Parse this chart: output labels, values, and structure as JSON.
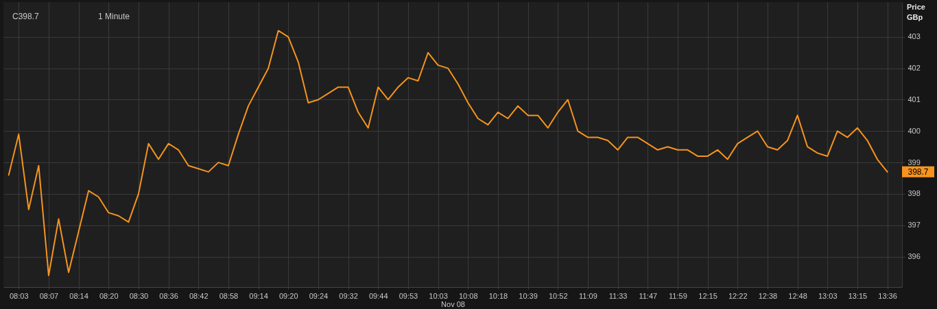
{
  "chart_data": {
    "type": "line",
    "xlabel": "Nov 08",
    "ylabel": "Price GBp",
    "annotations": [
      "C398.7",
      "1 Minute",
      "398.7"
    ],
    "categories": [
      null,
      "08:03",
      null,
      null,
      "08:07",
      null,
      null,
      "08:14",
      null,
      null,
      "08:20",
      null,
      null,
      "08:30",
      null,
      null,
      "08:36",
      null,
      null,
      "08:42",
      null,
      null,
      "08:58",
      null,
      null,
      "09:14",
      null,
      null,
      "09:20",
      null,
      null,
      "09:24",
      null,
      null,
      "09:32",
      null,
      null,
      "09:44",
      null,
      null,
      "09:53",
      null,
      null,
      "10:03",
      null,
      null,
      "10:08",
      null,
      null,
      "10:18",
      null,
      null,
      "10:39",
      null,
      null,
      "10:52",
      null,
      null,
      "11:09",
      null,
      null,
      "11:33",
      null,
      null,
      "11:47",
      null,
      null,
      "11:59",
      null,
      null,
      "12:15",
      null,
      null,
      "12:22",
      null,
      null,
      "12:38",
      null,
      null,
      "12:48",
      null,
      null,
      "13:03",
      null,
      null,
      "13:15",
      null,
      null,
      "13:36"
    ],
    "series": [
      {
        "color": "#f7941e",
        "values": [
          398.6,
          399.9,
          397.5,
          398.9,
          395.4,
          397.2,
          395.5,
          396.8,
          398.1,
          397.9,
          397.4,
          397.3,
          397.1,
          398.0,
          399.6,
          399.1,
          399.6,
          399.4,
          398.9,
          398.8,
          398.7,
          399.0,
          398.9,
          399.9,
          400.8,
          401.4,
          402.0,
          403.2,
          403.0,
          402.2,
          400.9,
          401.0,
          401.2,
          401.4,
          401.4,
          400.6,
          400.1,
          401.4,
          401.0,
          401.4,
          401.7,
          401.6,
          402.5,
          402.1,
          402.0,
          401.5,
          400.9,
          400.4,
          400.2,
          400.6,
          400.4,
          400.8,
          400.5,
          400.5,
          400.1,
          400.6,
          401.0,
          400.0,
          399.8,
          399.8,
          399.7,
          399.4,
          399.8,
          399.8,
          399.6,
          399.4,
          399.5,
          399.4,
          399.4,
          399.2,
          399.2,
          399.4,
          399.1,
          399.6,
          399.8,
          400.0,
          399.5,
          399.4,
          399.7,
          400.5,
          399.5,
          399.3,
          399.2,
          400.0,
          399.8,
          400.1,
          399.7,
          399.1,
          398.7
        ]
      }
    ],
    "ylim": [
      395.03,
      404.11
    ],
    "yticks": [
      396,
      397,
      398,
      399,
      400,
      401,
      402,
      403
    ],
    "grid": true,
    "line_style": "solid"
  }
}
